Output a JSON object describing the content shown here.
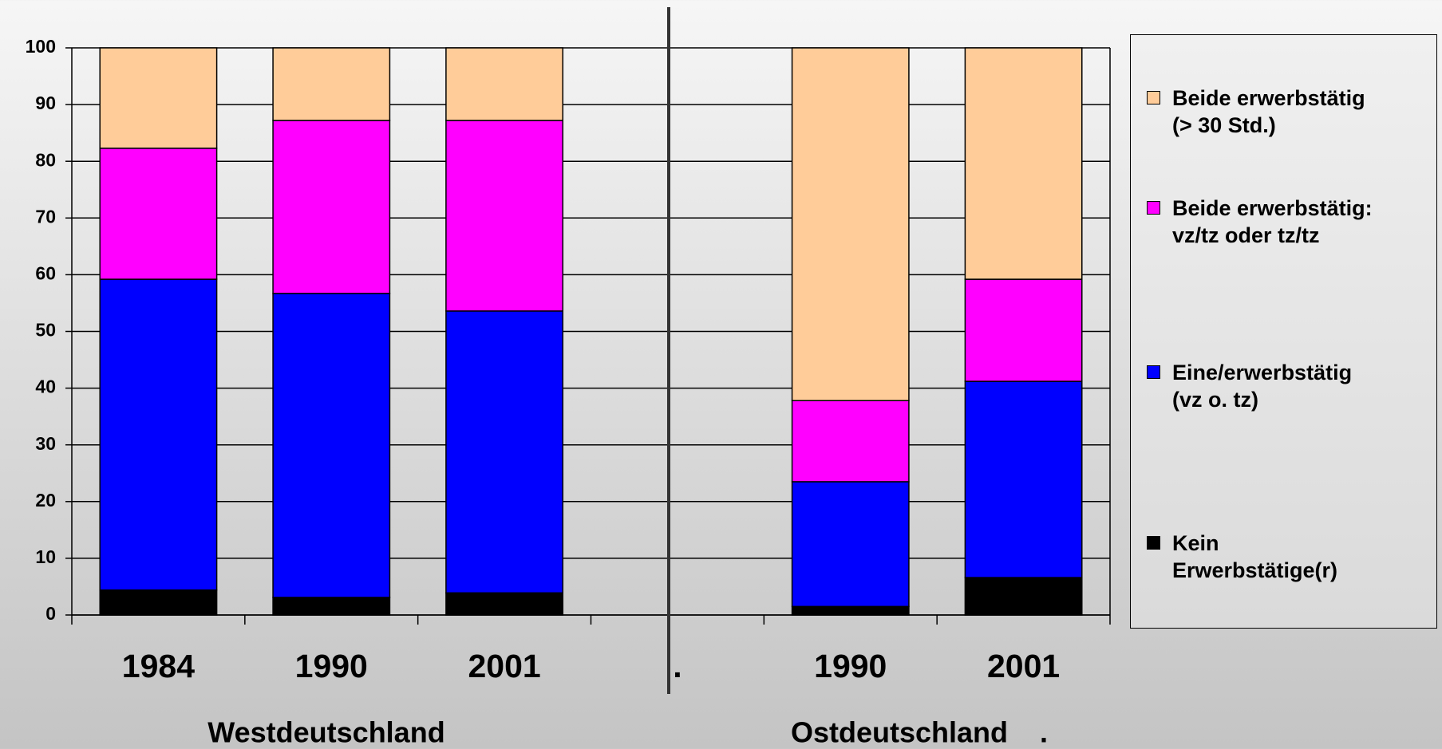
{
  "chart_data": {
    "type": "stacked_bar",
    "categories": [
      "1984",
      "1990",
      "2001",
      ".",
      "1990",
      "2001"
    ],
    "groups": [
      "Westdeutschland",
      "Ostdeutschland    ."
    ],
    "series": [
      {
        "name": "Kein\nErwerbstätige(r)",
        "color": "#000000",
        "values": [
          4.4,
          3.1,
          3.9,
          null,
          1.5,
          6.6
        ]
      },
      {
        "name": "Eine/erwerbstätig\n(vz o. tz)",
        "color": "#0000ff",
        "values": [
          54.8,
          53.6,
          49.7,
          null,
          22,
          34.6
        ]
      },
      {
        "name": "Beide erwerbstätig:\nvz/tz oder tz/tz",
        "color": "#ff00ff",
        "values": [
          23.1,
          30.5,
          33.6,
          null,
          14.3,
          18
        ]
      },
      {
        "name": "Beide erwerbstätig\n(> 30 Std.)",
        "color": "#ffcc99",
        "values": [
          17.7,
          12.8,
          12.8,
          null,
          62.2,
          40.8
        ]
      }
    ],
    "ylim": [
      0,
      100
    ],
    "yticks": [
      0,
      10,
      20,
      30,
      40,
      50,
      60,
      70,
      80,
      90,
      100
    ],
    "grid": true,
    "legend": "right"
  }
}
